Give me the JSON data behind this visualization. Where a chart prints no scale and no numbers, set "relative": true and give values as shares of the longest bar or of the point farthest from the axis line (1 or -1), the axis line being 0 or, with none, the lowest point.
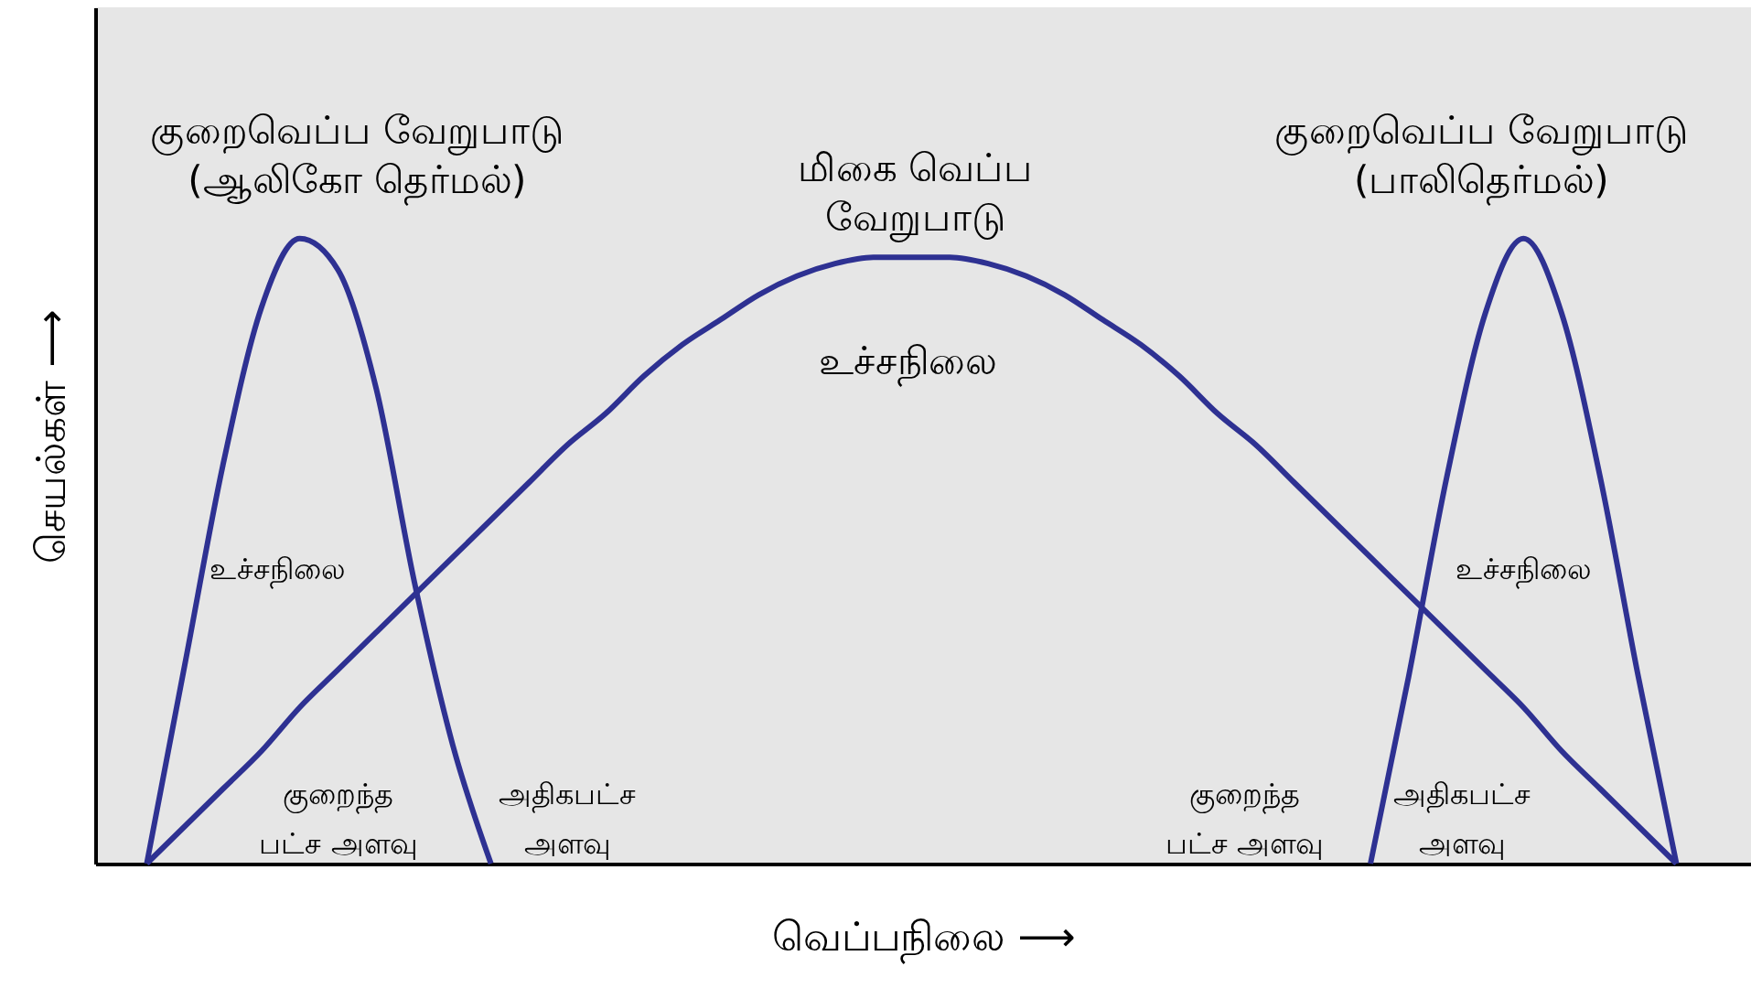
{
  "chart_data": {
    "type": "line",
    "relative": true,
    "xlabel": "வெப்பநிலை ⟶",
    "ylabel": "செயல்கள் ⟶",
    "categories": [
      null,
      null,
      null,
      null,
      null,
      null,
      null,
      null,
      null,
      null,
      null,
      null,
      null,
      null,
      null,
      null,
      null,
      null,
      null,
      null,
      null,
      null,
      null,
      null,
      null,
      null,
      null,
      null,
      null,
      null,
      null,
      null,
      null,
      null,
      null,
      null,
      null,
      null,
      null,
      null,
      null
    ],
    "series": [
      {
        "color": "#2e3192",
        "values": [
          0,
          0.32,
          0.64,
          0.89,
          1,
          0.95,
          0.76,
          0.45,
          0.19,
          0,
          null,
          null,
          null,
          null,
          null,
          null,
          null,
          null,
          null,
          null,
          null,
          null,
          null,
          null,
          null,
          null,
          null,
          null,
          null,
          null,
          null,
          null,
          null,
          null,
          null,
          null,
          null,
          null,
          null,
          null,
          null
        ]
      },
      {
        "color": "#2e3192",
        "values": [
          0,
          0.06,
          0.12,
          0.18,
          0.25,
          0.31,
          0.37,
          0.43,
          0.49,
          0.55,
          0.61,
          0.67,
          0.72,
          0.78,
          0.83,
          0.87,
          0.91,
          0.94,
          0.96,
          0.97,
          0.97,
          0.97,
          0.96,
          0.94,
          0.91,
          0.87,
          0.83,
          0.78,
          0.72,
          0.67,
          0.61,
          0.55,
          0.49,
          0.43,
          0.37,
          0.31,
          0.25,
          0.18,
          0.12,
          0.06,
          0
        ]
      },
      {
        "color": "#2e3192",
        "values": [
          null,
          null,
          null,
          null,
          null,
          null,
          null,
          null,
          null,
          null,
          null,
          null,
          null,
          null,
          null,
          null,
          null,
          null,
          null,
          null,
          null,
          null,
          null,
          null,
          null,
          null,
          null,
          null,
          null,
          null,
          null,
          null,
          0,
          0.3,
          0.62,
          0.88,
          1,
          0.88,
          0.62,
          0.3,
          0
        ]
      }
    ],
    "annotations": [
      "குறைவெப்ப வேறுபாடு\n(ஆலிகோ தெர்மல்)",
      "மிகை வெப்ப\nவேறுபாடு",
      "குறைவெப்ப வேறுபாடு\n(பாலிதெர்மல்)",
      "உச்சநிலை",
      "உச்சநிலை",
      "உச்சநிலை",
      "குறைந்த\nபட்ச அளவு",
      "அதிகபட்ச\nஅளவு",
      "குறைந்த\nபட்ச அளவு",
      "அதிகபட்ச\nஅளவு"
    ]
  }
}
